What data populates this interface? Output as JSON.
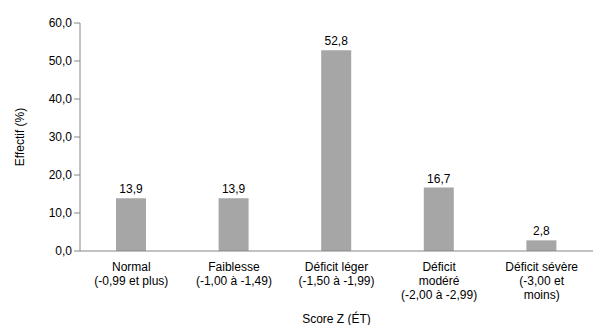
{
  "chart_data": {
    "type": "bar",
    "categories": [
      "Normal\n(-0,99 et plus)",
      "Faiblesse\n(-1,00 à -1,49)",
      "Déficit léger\n(-1,50 à -1,99)",
      "Déficit\nmodéré\n(-2,00 à -2,99)",
      "Déficit sévère\n(-3,00 et\nmoins)"
    ],
    "values": [
      13.9,
      13.9,
      52.8,
      16.7,
      2.8
    ],
    "value_labels": [
      "13,9",
      "13,9",
      "52,8",
      "16,7",
      "2,8"
    ],
    "data_labels": true,
    "color": "#a6a6a6",
    "x_label": "Score Z (ÉT)",
    "y_label": "Effectif (%)",
    "ylim": [
      0,
      60
    ],
    "yticks": [
      {
        "value": 0,
        "label": "0,0"
      },
      {
        "value": 10,
        "label": "10,0"
      },
      {
        "value": 20,
        "label": "20,0"
      },
      {
        "value": 30,
        "label": "30,0"
      },
      {
        "value": 40,
        "label": "40,0"
      },
      {
        "value": 50,
        "label": "50,0"
      },
      {
        "value": 60,
        "label": "60,0"
      }
    ],
    "grid": false
  }
}
